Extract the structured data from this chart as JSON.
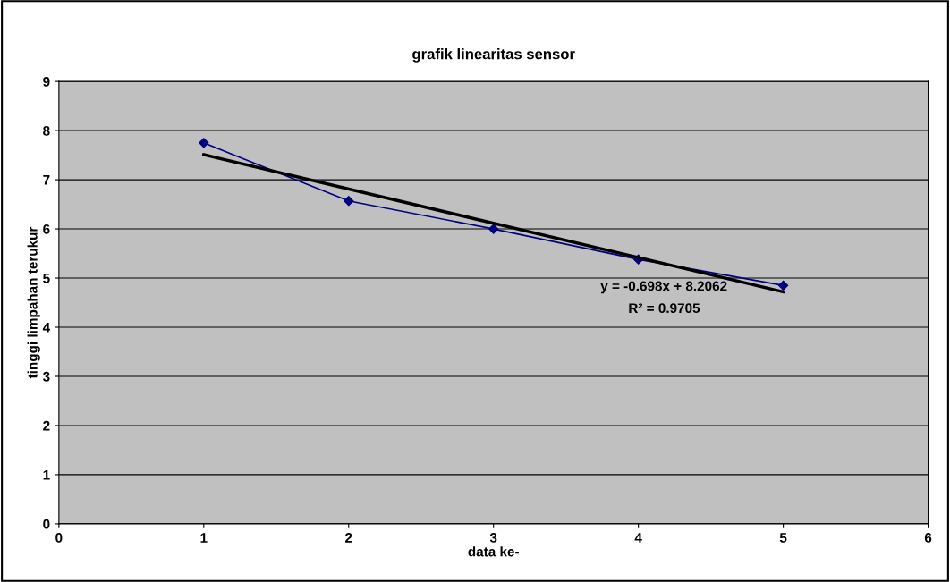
{
  "chart_data": {
    "type": "line",
    "title": "grafik linearitas sensor",
    "xlabel": "data ke-",
    "ylabel": "tinggi limpahan terukur",
    "x": [
      1,
      2,
      3,
      4,
      5
    ],
    "series": [
      {
        "color": "#000080",
        "marker": "diamond",
        "values": [
          7.75,
          6.57,
          6.0,
          5.38,
          4.85
        ]
      },
      {
        "type": "line",
        "color": "#000000",
        "marker": "none",
        "x": [
          1,
          5
        ],
        "values": [
          7.51,
          4.72
        ]
      }
    ],
    "annotations": [
      "y = -0.698x + 8.2062",
      "R² = 0.9705"
    ],
    "xlim": [
      0,
      6
    ],
    "xticks": [
      0,
      1,
      2,
      3,
      4,
      5,
      6
    ],
    "ylim": [
      0,
      9
    ],
    "yticks": [
      0,
      1,
      2,
      3,
      4,
      5,
      6,
      7,
      8,
      9
    ],
    "grid": "y",
    "legend": false
  }
}
